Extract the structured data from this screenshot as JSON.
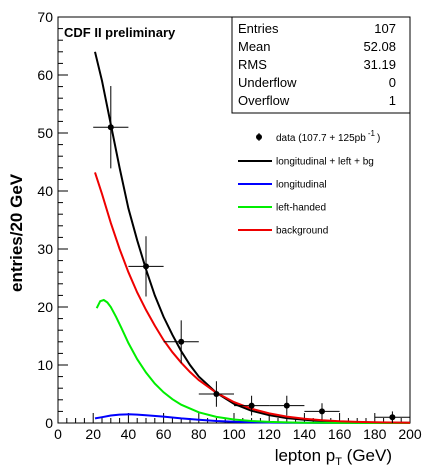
{
  "chart_data": {
    "type": "line",
    "annotation": "CDF II preliminary",
    "xlabel": "lepton p",
    "xlabel_sub": "T",
    "xlabel_unit": " (GeV)",
    "ylabel": "entries/20 GeV",
    "xlim": [
      0,
      200
    ],
    "ylim": [
      0,
      70
    ],
    "xticks": [
      0,
      20,
      40,
      60,
      80,
      100,
      120,
      140,
      160,
      180,
      200
    ],
    "yticks": [
      0,
      10,
      20,
      30,
      40,
      50,
      60,
      70
    ],
    "xtick_labels": [
      "0",
      "20",
      "40",
      "60",
      "80",
      "100",
      "120",
      "140",
      "160",
      "180",
      "200"
    ],
    "ytick_labels": [
      "0",
      "10",
      "20",
      "30",
      "40",
      "50",
      "60",
      "70"
    ],
    "grid": false,
    "stats_box": {
      "rows": [
        {
          "label": "Entries",
          "value": "107"
        },
        {
          "label": "Mean",
          "value": "52.08"
        },
        {
          "label": "RMS",
          "value": "31.19"
        },
        {
          "label": "Underflow",
          "value": "0"
        },
        {
          "label": "Overflow",
          "value": "1"
        }
      ]
    },
    "data_points": {
      "name": "data (107.7 + 125pb",
      "name_sup": "-1",
      "name_end": ")",
      "points": [
        {
          "x": 30,
          "y": 51,
          "yerr": 7.1,
          "xerr": 10
        },
        {
          "x": 50,
          "y": 27,
          "yerr": 5.2,
          "xerr": 10
        },
        {
          "x": 70,
          "y": 14,
          "yerr": 3.7,
          "xerr": 10
        },
        {
          "x": 90,
          "y": 5,
          "yerr": 2.2,
          "xerr": 10
        },
        {
          "x": 110,
          "y": 3,
          "yerr": 1.7,
          "xerr": 10
        },
        {
          "x": 130,
          "y": 3,
          "yerr": 1.7,
          "xerr": 10
        },
        {
          "x": 150,
          "y": 2,
          "yerr": 1.4,
          "xerr": 10
        },
        {
          "x": 190,
          "y": 1,
          "yerr": 1.0,
          "xerr": 10
        }
      ]
    },
    "series": [
      {
        "name": "longitudinal + left + bg",
        "color": "#000000",
        "x": [
          21,
          25,
          30,
          35,
          40,
          45,
          50,
          55,
          60,
          65,
          70,
          75,
          80,
          90,
          100,
          110,
          120,
          130,
          140,
          150,
          160,
          170,
          180,
          190,
          200
        ],
        "y": [
          64,
          59,
          51.5,
          44,
          37,
          31.5,
          26.5,
          22,
          18.3,
          15.2,
          12.4,
          10,
          8,
          5.2,
          3.3,
          2.1,
          1.35,
          0.85,
          0.55,
          0.35,
          0.22,
          0.14,
          0.09,
          0.06,
          0.04
        ]
      },
      {
        "name": "longitudinal",
        "color": "#0000ff",
        "x": [
          21,
          25,
          30,
          35,
          40,
          45,
          50,
          60,
          70,
          80,
          90,
          100,
          110,
          120,
          130,
          140,
          150,
          160,
          180,
          200
        ],
        "y": [
          0.8,
          1.0,
          1.3,
          1.45,
          1.5,
          1.45,
          1.35,
          1.1,
          0.8,
          0.55,
          0.35,
          0.22,
          0.13,
          0.08,
          0.05,
          0.03,
          0.02,
          0.01,
          0.005,
          0.002
        ]
      },
      {
        "name": "left-handed",
        "color": "#00ee00",
        "x": [
          22,
          24,
          26,
          28,
          30,
          33,
          36,
          40,
          45,
          50,
          55,
          60,
          65,
          70,
          80,
          90,
          100,
          110,
          120,
          130,
          140,
          150,
          160,
          180,
          200
        ],
        "y": [
          19.8,
          21,
          21.2,
          20.8,
          20,
          18.3,
          16.4,
          13.8,
          11,
          8.7,
          6.8,
          5.3,
          4.1,
          3.15,
          1.85,
          1.05,
          0.6,
          0.34,
          0.19,
          0.11,
          0.06,
          0.035,
          0.02,
          0.006,
          0.002
        ]
      },
      {
        "name": "background",
        "color": "#ee0000",
        "x": [
          21,
          25,
          30,
          35,
          40,
          45,
          50,
          55,
          60,
          65,
          70,
          75,
          80,
          90,
          100,
          110,
          120,
          130,
          140,
          150,
          160,
          170,
          180,
          190,
          200
        ],
        "y": [
          43.2,
          39.5,
          34.5,
          30,
          26,
          22.5,
          19.5,
          16.8,
          14.3,
          12.2,
          10.4,
          8.8,
          7.4,
          5.2,
          3.6,
          2.45,
          1.65,
          1.1,
          0.72,
          0.47,
          0.3,
          0.19,
          0.12,
          0.08,
          0.05
        ]
      }
    ],
    "legend_placement": "top-right"
  }
}
